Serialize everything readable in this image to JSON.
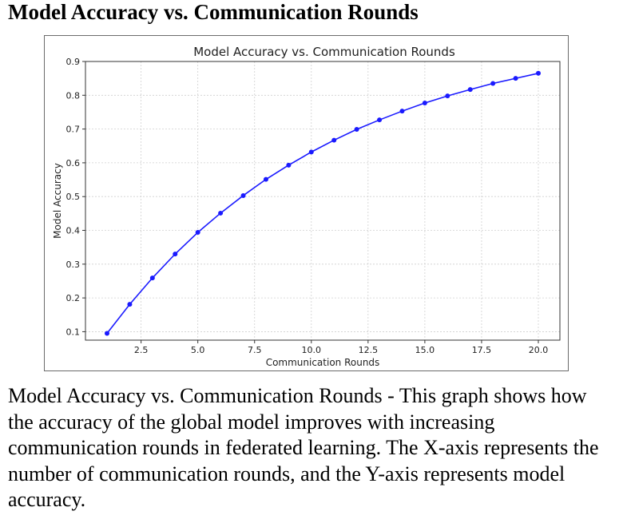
{
  "heading": "Model Accuracy vs. Communication Rounds",
  "caption": "Model Accuracy vs. Communication Rounds - This graph shows how the accuracy of the global model improves with increasing communication rounds in federated learning. The X-axis represents the number of communication rounds, and the Y-axis represents model accuracy.",
  "chart_data": {
    "type": "line",
    "title": "Model Accuracy vs. Communication Rounds",
    "xlabel": "Communication Rounds",
    "ylabel": "Model Accuracy",
    "xlim": [
      0.05,
      20.95
    ],
    "ylim": [
      0.075,
      0.9
    ],
    "xticks": [
      2.5,
      5.0,
      7.5,
      10.0,
      12.5,
      15.0,
      17.5,
      20.0
    ],
    "xtick_labels": [
      "2.5",
      "5.0",
      "7.5",
      "10.0",
      "12.5",
      "15.0",
      "17.5",
      "20.0"
    ],
    "yticks": [
      0.1,
      0.2,
      0.3,
      0.4,
      0.5,
      0.6,
      0.7,
      0.8,
      0.9
    ],
    "ytick_labels": [
      "0.1",
      "0.2",
      "0.3",
      "0.4",
      "0.5",
      "0.6",
      "0.7",
      "0.8",
      "0.9"
    ],
    "grid": true,
    "line_color": "#1a1aff",
    "x": [
      1,
      2,
      3,
      4,
      5,
      6,
      7,
      8,
      9,
      10,
      11,
      12,
      13,
      14,
      15,
      16,
      17,
      18,
      19,
      20
    ],
    "y": [
      0.095,
      0.181,
      0.259,
      0.33,
      0.394,
      0.451,
      0.503,
      0.551,
      0.593,
      0.632,
      0.667,
      0.699,
      0.727,
      0.753,
      0.777,
      0.798,
      0.817,
      0.835,
      0.85,
      0.865
    ]
  }
}
